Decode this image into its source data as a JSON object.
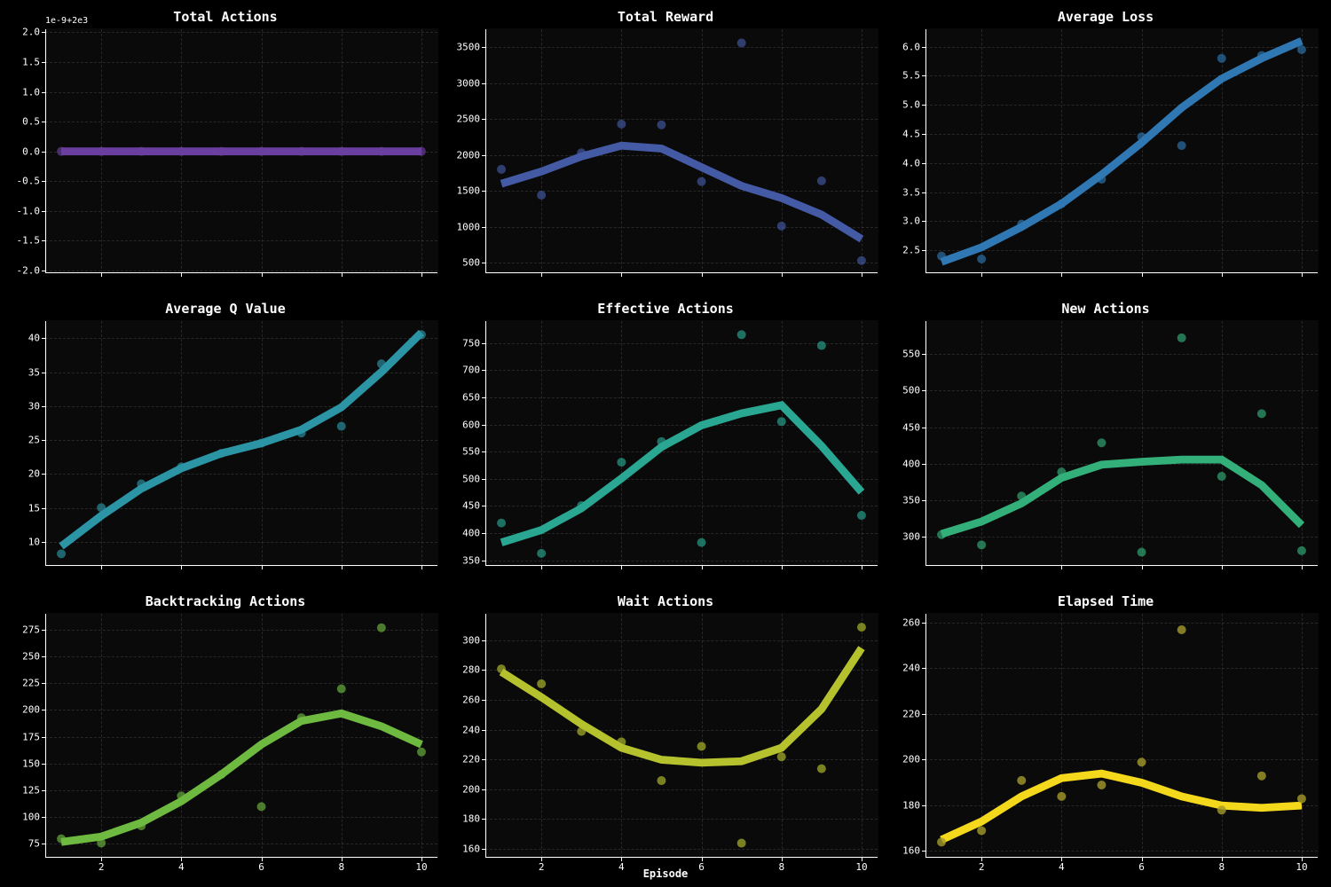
{
  "global": {
    "background_color": "#000000",
    "panel_bg": "#0a0a0a",
    "text_color": "#ffffff",
    "grid_color": "rgba(128,128,128,0.25)",
    "font_family": "monospace",
    "title_fontsize": 15,
    "tick_fontsize": 11,
    "xlabel": "Episode",
    "xlabel_fontsize": 12,
    "layout": {
      "rows": 3,
      "cols": 3
    }
  },
  "charts": [
    {
      "title": "Total Actions",
      "type": "line+scatter",
      "x": [
        1,
        2,
        3,
        4,
        5,
        6,
        7,
        8,
        9,
        10
      ],
      "scatter_y": [
        0,
        0,
        0,
        0,
        0,
        0,
        0,
        0,
        0,
        0
      ],
      "line_y": [
        0,
        0,
        0,
        0,
        0,
        0,
        0,
        0,
        0,
        0
      ],
      "line_color": "#6b3fa0",
      "line_width": 2.2,
      "marker_color": "#6b3fa0",
      "marker_alpha": 0.65,
      "marker_size": 5,
      "xlim": [
        0.6,
        10.4
      ],
      "ylim": [
        -2.05,
        2.05
      ],
      "xticks": [
        2,
        4,
        6,
        8,
        10
      ],
      "yticks": [
        -2.0,
        -1.5,
        -1.0,
        -0.5,
        0.0,
        0.5,
        1.0,
        1.5,
        2.0
      ],
      "ytick_labels": [
        "-2.0",
        "-1.5",
        "-1.0",
        "-0.5",
        "0.0",
        "0.5",
        "1.0",
        "1.5",
        "2.0"
      ],
      "sci_notation": "1e-9+2e3"
    },
    {
      "title": "Total Reward",
      "type": "line+scatter",
      "x": [
        1,
        2,
        3,
        4,
        5,
        6,
        7,
        8,
        9,
        10
      ],
      "scatter_y": [
        1800,
        1440,
        2030,
        2430,
        2420,
        1630,
        3560,
        1010,
        1640,
        530
      ],
      "line_y": [
        1600,
        1770,
        1980,
        2130,
        2090,
        1830,
        1570,
        1400,
        1170,
        830
      ],
      "line_color": "#445aa4",
      "line_width": 2.2,
      "marker_color": "#445aa4",
      "marker_alpha": 0.65,
      "marker_size": 5,
      "xlim": [
        0.6,
        10.4
      ],
      "ylim": [
        350,
        3750
      ],
      "xticks": [
        2,
        4,
        6,
        8,
        10
      ],
      "yticks": [
        500,
        1000,
        1500,
        2000,
        2500,
        3000,
        3500
      ],
      "ytick_labels": [
        "500",
        "1000",
        "1500",
        "2000",
        "2500",
        "3000",
        "3500"
      ]
    },
    {
      "title": "Average Loss",
      "type": "line+scatter",
      "x": [
        1,
        2,
        3,
        4,
        5,
        6,
        7,
        8,
        9,
        10
      ],
      "scatter_y": [
        2.4,
        2.35,
        2.95,
        3.3,
        3.72,
        4.45,
        4.3,
        5.8,
        5.85,
        5.95
      ],
      "line_y": [
        2.3,
        2.55,
        2.9,
        3.3,
        3.8,
        4.35,
        4.95,
        5.45,
        5.8,
        6.1
      ],
      "line_color": "#2f78b3",
      "line_width": 2.2,
      "marker_color": "#2f78b3",
      "marker_alpha": 0.65,
      "marker_size": 5,
      "xlim": [
        0.6,
        10.4
      ],
      "ylim": [
        2.1,
        6.3
      ],
      "xticks": [
        2,
        4,
        6,
        8,
        10
      ],
      "yticks": [
        2.5,
        3.0,
        3.5,
        4.0,
        4.5,
        5.0,
        5.5,
        6.0
      ],
      "ytick_labels": [
        "2.5",
        "3.0",
        "3.5",
        "4.0",
        "4.5",
        "5.0",
        "5.5",
        "6.0"
      ]
    },
    {
      "title": "Average Q Value",
      "type": "line+scatter",
      "x": [
        1,
        2,
        3,
        4,
        5,
        6,
        7,
        8,
        9,
        10
      ],
      "scatter_y": [
        8.2,
        15,
        18.5,
        21,
        23,
        24.5,
        26,
        27,
        36.2,
        40.5
      ],
      "line_y": [
        9.3,
        13.8,
        17.8,
        20.8,
        23,
        24.5,
        26.5,
        29.8,
        35,
        40.8
      ],
      "line_color": "#2b95a6",
      "line_width": 2.2,
      "marker_color": "#2b95a6",
      "marker_alpha": 0.65,
      "marker_size": 5,
      "xlim": [
        0.6,
        10.4
      ],
      "ylim": [
        6.5,
        42.5
      ],
      "xticks": [
        2,
        4,
        6,
        8,
        10
      ],
      "yticks": [
        10,
        15,
        20,
        25,
        30,
        35,
        40
      ],
      "ytick_labels": [
        "10",
        "15",
        "20",
        "25",
        "30",
        "35",
        "40"
      ]
    },
    {
      "title": "Effective Actions",
      "type": "line+scatter",
      "x": [
        1,
        2,
        3,
        4,
        5,
        6,
        7,
        8,
        9,
        10
      ],
      "scatter_y": [
        418,
        362,
        450,
        530,
        568,
        382,
        765,
        605,
        745,
        432
      ],
      "line_y": [
        382,
        405,
        445,
        500,
        558,
        598,
        620,
        635,
        560,
        475
      ],
      "line_color": "#2aa793",
      "line_width": 2.2,
      "marker_color": "#2aa793",
      "marker_alpha": 0.65,
      "marker_size": 5,
      "xlim": [
        0.6,
        10.4
      ],
      "ylim": [
        340,
        790
      ],
      "xticks": [
        2,
        4,
        6,
        8,
        10
      ],
      "yticks": [
        350,
        400,
        450,
        500,
        550,
        600,
        650,
        700,
        750
      ],
      "ytick_labels": [
        "350",
        "400",
        "450",
        "500",
        "550",
        "600",
        "650",
        "700",
        "750"
      ]
    },
    {
      "title": "New Actions",
      "type": "line+scatter",
      "x": [
        1,
        2,
        3,
        4,
        5,
        6,
        7,
        8,
        9,
        10
      ],
      "scatter_y": [
        302,
        288,
        355,
        388,
        428,
        278,
        572,
        382,
        468,
        280
      ],
      "line_y": [
        303,
        320,
        345,
        380,
        398,
        402,
        405,
        405,
        370,
        315
      ],
      "line_color": "#33b07a",
      "line_width": 2.2,
      "marker_color": "#33b07a",
      "marker_alpha": 0.65,
      "marker_size": 5,
      "xlim": [
        0.6,
        10.4
      ],
      "ylim": [
        260,
        595
      ],
      "xticks": [
        2,
        4,
        6,
        8,
        10
      ],
      "yticks": [
        300,
        350,
        400,
        450,
        500,
        550
      ],
      "ytick_labels": [
        "300",
        "350",
        "400",
        "450",
        "500",
        "550"
      ]
    },
    {
      "title": "Backtracking Actions",
      "type": "line+scatter",
      "x": [
        1,
        2,
        3,
        4,
        5,
        6,
        7,
        8,
        9,
        10
      ],
      "scatter_y": [
        80,
        76,
        92,
        120,
        140,
        110,
        193,
        220,
        277,
        161
      ],
      "line_y": [
        77,
        82,
        95,
        115,
        140,
        168,
        190,
        197,
        185,
        168
      ],
      "line_color": "#6eb93f",
      "line_width": 2.2,
      "marker_color": "#6eb93f",
      "marker_alpha": 0.65,
      "marker_size": 5,
      "xlim": [
        0.6,
        10.4
      ],
      "ylim": [
        62,
        290
      ],
      "xticks": [
        2,
        4,
        6,
        8,
        10
      ],
      "yticks": [
        75,
        100,
        125,
        150,
        175,
        200,
        225,
        250,
        275
      ],
      "ytick_labels": [
        "75",
        "100",
        "125",
        "150",
        "175",
        "200",
        "225",
        "250",
        "275"
      ]
    },
    {
      "title": "Wait Actions",
      "type": "line+scatter",
      "x": [
        1,
        2,
        3,
        4,
        5,
        6,
        7,
        8,
        9,
        10
      ],
      "scatter_y": [
        281,
        271,
        239,
        232,
        206,
        229,
        164,
        222,
        214,
        309
      ],
      "line_y": [
        279,
        262,
        244,
        228,
        220,
        218,
        219,
        228,
        254,
        295
      ],
      "line_color": "#b6c22d",
      "line_width": 2.2,
      "marker_color": "#b6c22d",
      "marker_alpha": 0.65,
      "marker_size": 5,
      "xlim": [
        0.6,
        10.4
      ],
      "ylim": [
        154,
        318
      ],
      "xticks": [
        2,
        4,
        6,
        8,
        10
      ],
      "yticks": [
        160,
        180,
        200,
        220,
        240,
        260,
        280,
        300
      ],
      "ytick_labels": [
        "160",
        "180",
        "200",
        "220",
        "240",
        "260",
        "280",
        "300"
      ]
    },
    {
      "title": "Elapsed Time",
      "type": "line+scatter",
      "x": [
        1,
        2,
        3,
        4,
        5,
        6,
        7,
        8,
        9,
        10
      ],
      "scatter_y": [
        164,
        169,
        191,
        184,
        189,
        199,
        257,
        178,
        193,
        183
      ],
      "line_y": [
        165,
        173,
        184,
        192,
        194,
        190,
        184,
        180,
        179,
        180
      ],
      "line_color": "#f4d81c",
      "line_width": 2.2,
      "marker_color": "#a39a2a",
      "marker_alpha": 0.8,
      "marker_size": 5,
      "xlim": [
        0.6,
        10.4
      ],
      "ylim": [
        157,
        264
      ],
      "xticks": [
        2,
        4,
        6,
        8,
        10
      ],
      "yticks": [
        160,
        180,
        200,
        220,
        240,
        260
      ],
      "ytick_labels": [
        "160",
        "180",
        "200",
        "220",
        "240",
        "260"
      ]
    }
  ]
}
